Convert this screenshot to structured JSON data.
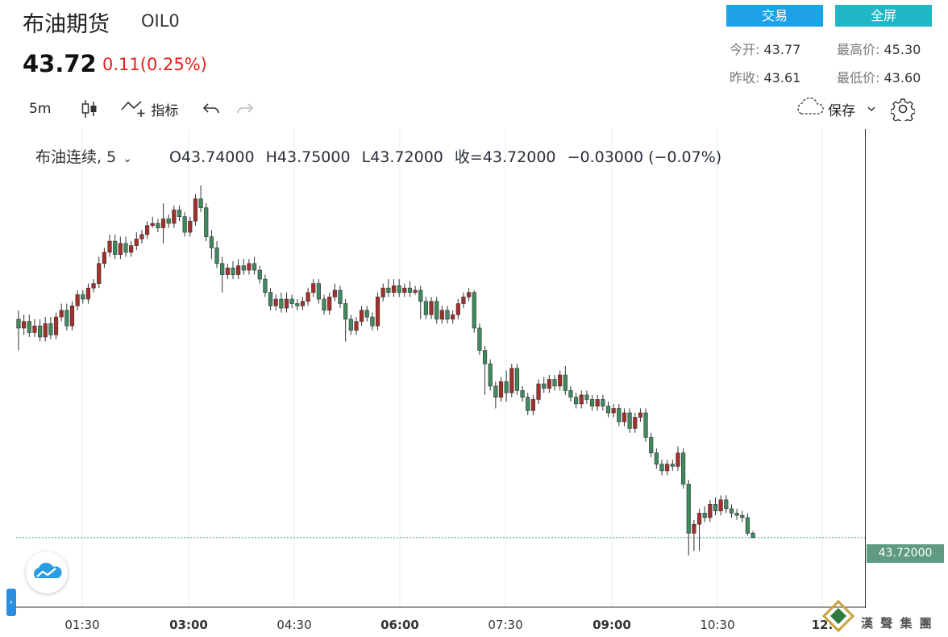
{
  "header": {
    "title": "布油期货",
    "code": "OIL0",
    "last_price": "43.72",
    "change": "0.11(0.25%)",
    "trade_button": "交易",
    "fullscreen_button": "全屏"
  },
  "stats": {
    "open_label": "今开:",
    "open": "43.77",
    "high_label": "最高价:",
    "high": "45.30",
    "prev_close_label": "昨收:",
    "prev_close": "43.61",
    "low_label": "最低价:",
    "low": "43.60"
  },
  "toolbar": {
    "interval": "5m",
    "indicators_label": "指标",
    "save_label": "保存"
  },
  "legend": {
    "symbol": "布油连续, 5",
    "open": "O43.74000",
    "high": "H43.75000",
    "low": "L43.72000",
    "close": "收=43.72000",
    "change": "−0.03000 (−0.07%)"
  },
  "price_axis_label": "43.72000",
  "time_axis": [
    "01:30",
    "03:00",
    "04:30",
    "06:00",
    "07:30",
    "09:00",
    "10:30",
    "12:"
  ],
  "watermark_text": "漢 聲 集 團",
  "colors": {
    "up": "#a5302b",
    "down": "#3f8a5e",
    "accent": "#1da1e8",
    "price_label": "#5f9b82"
  },
  "chart_data": {
    "type": "candlestick",
    "interval": "5m",
    "x_ticks": [
      "01:30",
      "03:00",
      "04:30",
      "06:00",
      "07:30",
      "09:00",
      "10:30",
      "12:"
    ],
    "current_price": 43.72,
    "candles": [
      [
        44.7,
        44.66,
        44.74,
        44.56
      ],
      [
        44.66,
        44.69,
        44.72,
        44.63
      ],
      [
        44.69,
        44.64,
        44.72,
        44.62
      ],
      [
        44.64,
        44.67,
        44.7,
        44.62
      ],
      [
        44.67,
        44.62,
        44.7,
        44.6
      ],
      [
        44.62,
        44.68,
        44.71,
        44.6
      ],
      [
        44.68,
        44.63,
        44.71,
        44.61
      ],
      [
        44.63,
        44.71,
        44.73,
        44.61
      ],
      [
        44.71,
        44.74,
        44.77,
        44.69
      ],
      [
        44.74,
        44.67,
        44.77,
        44.65
      ],
      [
        44.67,
        44.76,
        44.78,
        44.65
      ],
      [
        44.76,
        44.81,
        44.83,
        44.74
      ],
      [
        44.81,
        44.79,
        44.83,
        44.77
      ],
      [
        44.79,
        44.84,
        44.86,
        44.77
      ],
      [
        44.84,
        44.86,
        44.88,
        44.82
      ],
      [
        44.86,
        44.95,
        44.98,
        44.84
      ],
      [
        44.95,
        45.0,
        45.02,
        44.93
      ],
      [
        45.0,
        45.05,
        45.08,
        44.98
      ],
      [
        45.05,
        44.99,
        45.08,
        44.97
      ],
      [
        44.99,
        45.04,
        45.07,
        44.97
      ],
      [
        45.04,
        45.0,
        45.07,
        44.98
      ],
      [
        45.0,
        45.03,
        45.05,
        44.98
      ],
      [
        45.03,
        45.06,
        45.09,
        45.01
      ],
      [
        45.06,
        45.08,
        45.1,
        45.04
      ],
      [
        45.08,
        45.12,
        45.14,
        45.06
      ],
      [
        45.12,
        45.13,
        45.16,
        45.11
      ],
      [
        45.13,
        45.11,
        45.15,
        45.09
      ],
      [
        45.11,
        45.15,
        45.22,
        45.04
      ],
      [
        45.15,
        45.13,
        45.17,
        45.11
      ],
      [
        45.13,
        45.19,
        45.21,
        45.11
      ],
      [
        45.19,
        45.16,
        45.21,
        45.14
      ],
      [
        45.16,
        45.09,
        45.18,
        45.07
      ],
      [
        45.09,
        45.14,
        45.16,
        45.07
      ],
      [
        45.14,
        45.24,
        45.26,
        45.12
      ],
      [
        45.24,
        45.2,
        45.3,
        45.18
      ],
      [
        45.2,
        45.07,
        45.22,
        45.05
      ],
      [
        45.07,
        45.02,
        45.1,
        44.97
      ],
      [
        45.02,
        44.95,
        45.05,
        44.93
      ],
      [
        44.95,
        44.9,
        44.98,
        44.82
      ],
      [
        44.9,
        44.93,
        44.95,
        44.88
      ],
      [
        44.93,
        44.9,
        44.96,
        44.88
      ],
      [
        44.9,
        44.94,
        44.97,
        44.88
      ],
      [
        44.94,
        44.92,
        44.97,
        44.9
      ],
      [
        44.92,
        44.95,
        44.97,
        44.9
      ],
      [
        44.95,
        44.92,
        44.98,
        44.9
      ],
      [
        44.92,
        44.88,
        44.94,
        44.86
      ],
      [
        44.88,
        44.82,
        44.9,
        44.8
      ],
      [
        44.82,
        44.76,
        44.84,
        44.74
      ],
      [
        44.76,
        44.79,
        44.81,
        44.74
      ],
      [
        44.79,
        44.75,
        44.82,
        44.73
      ],
      [
        44.75,
        44.79,
        44.82,
        44.73
      ],
      [
        44.79,
        44.77,
        44.81,
        44.75
      ],
      [
        44.77,
        44.76,
        44.79,
        44.74
      ],
      [
        44.76,
        44.78,
        44.8,
        44.74
      ],
      [
        44.78,
        44.82,
        44.84,
        44.76
      ],
      [
        44.82,
        44.86,
        44.88,
        44.8
      ],
      [
        44.86,
        44.79,
        44.88,
        44.77
      ],
      [
        44.79,
        44.74,
        44.81,
        44.72
      ],
      [
        44.74,
        44.8,
        44.82,
        44.72
      ],
      [
        44.8,
        44.83,
        44.86,
        44.78
      ],
      [
        44.83,
        44.77,
        44.85,
        44.75
      ],
      [
        44.77,
        44.7,
        44.79,
        44.6
      ],
      [
        44.7,
        44.65,
        44.72,
        44.63
      ],
      [
        44.65,
        44.69,
        44.71,
        44.63
      ],
      [
        44.69,
        44.74,
        44.76,
        44.67
      ],
      [
        44.74,
        44.71,
        44.76,
        44.69
      ],
      [
        44.71,
        44.67,
        44.73,
        44.65
      ],
      [
        44.67,
        44.8,
        44.82,
        44.65
      ],
      [
        44.8,
        44.84,
        44.86,
        44.78
      ],
      [
        44.84,
        44.82,
        44.88,
        44.8
      ],
      [
        44.82,
        44.85,
        44.88,
        44.8
      ],
      [
        44.85,
        44.82,
        44.88,
        44.8
      ],
      [
        44.82,
        44.84,
        44.86,
        44.8
      ],
      [
        44.84,
        44.82,
        44.87,
        44.8
      ],
      [
        44.82,
        44.83,
        44.85,
        44.81
      ],
      [
        44.83,
        44.78,
        44.85,
        44.7
      ],
      [
        44.78,
        44.72,
        44.8,
        44.7
      ],
      [
        44.72,
        44.78,
        44.8,
        44.7
      ],
      [
        44.78,
        44.7,
        44.8,
        44.68
      ],
      [
        44.7,
        44.74,
        44.76,
        44.68
      ],
      [
        44.74,
        44.7,
        44.76,
        44.68
      ],
      [
        44.7,
        44.72,
        44.74,
        44.68
      ],
      [
        44.72,
        44.77,
        44.79,
        44.7
      ],
      [
        44.77,
        44.8,
        44.82,
        44.75
      ],
      [
        44.8,
        44.82,
        44.84,
        44.78
      ],
      [
        44.82,
        44.66,
        44.83,
        44.64
      ],
      [
        44.66,
        44.56,
        44.68,
        44.54
      ],
      [
        44.56,
        44.5,
        44.58,
        44.36
      ],
      [
        44.5,
        44.4,
        44.52,
        44.38
      ],
      [
        44.4,
        44.35,
        44.42,
        44.3
      ],
      [
        44.35,
        44.42,
        44.44,
        44.33
      ],
      [
        44.42,
        44.37,
        44.47,
        44.33
      ],
      [
        44.37,
        44.48,
        44.5,
        44.35
      ],
      [
        44.48,
        44.38,
        44.5,
        44.36
      ],
      [
        44.38,
        44.35,
        44.4,
        44.33
      ],
      [
        44.35,
        44.29,
        44.37,
        44.27
      ],
      [
        44.29,
        44.34,
        44.36,
        44.27
      ],
      [
        44.34,
        44.41,
        44.43,
        44.32
      ],
      [
        44.41,
        44.39,
        44.44,
        44.37
      ],
      [
        44.39,
        44.43,
        44.45,
        44.37
      ],
      [
        44.43,
        44.4,
        44.45,
        44.38
      ],
      [
        44.4,
        44.45,
        44.47,
        44.38
      ],
      [
        44.45,
        44.38,
        44.49,
        44.36
      ],
      [
        44.38,
        44.35,
        44.4,
        44.33
      ],
      [
        44.35,
        44.32,
        44.37,
        44.3
      ],
      [
        44.32,
        44.36,
        44.38,
        44.3
      ],
      [
        44.36,
        44.34,
        44.38,
        44.32
      ],
      [
        44.34,
        44.31,
        44.36,
        44.29
      ],
      [
        44.31,
        44.34,
        44.36,
        44.29
      ],
      [
        44.34,
        44.31,
        44.36,
        44.29
      ],
      [
        44.31,
        44.28,
        44.33,
        44.26
      ],
      [
        44.28,
        44.3,
        44.32,
        44.26
      ],
      [
        44.3,
        44.24,
        44.32,
        44.22
      ],
      [
        44.24,
        44.28,
        44.3,
        44.22
      ],
      [
        44.28,
        44.21,
        44.3,
        44.19
      ],
      [
        44.21,
        44.26,
        44.28,
        44.19
      ],
      [
        44.26,
        44.28,
        44.3,
        44.24
      ],
      [
        44.28,
        44.17,
        44.3,
        44.15
      ],
      [
        44.17,
        44.1,
        44.19,
        44.08
      ],
      [
        44.1,
        44.05,
        44.12,
        44.03
      ],
      [
        44.05,
        44.02,
        44.07,
        44.0
      ],
      [
        44.02,
        44.05,
        44.07,
        44.0
      ],
      [
        44.05,
        44.04,
        44.07,
        44.02
      ],
      [
        44.04,
        44.1,
        44.13,
        44.02
      ],
      [
        44.1,
        43.96,
        44.12,
        43.94
      ],
      [
        43.96,
        43.74,
        43.98,
        43.64
      ],
      [
        43.74,
        43.78,
        43.8,
        43.66
      ],
      [
        43.78,
        43.83,
        43.85,
        43.66
      ],
      [
        43.83,
        43.81,
        43.86,
        43.79
      ],
      [
        43.81,
        43.87,
        43.89,
        43.79
      ],
      [
        43.87,
        43.84,
        43.9,
        43.82
      ],
      [
        43.84,
        43.89,
        43.91,
        43.82
      ],
      [
        43.89,
        43.85,
        43.91,
        43.83
      ],
      [
        43.85,
        43.83,
        43.87,
        43.81
      ],
      [
        43.83,
        43.82,
        43.85,
        43.8
      ],
      [
        43.82,
        43.81,
        43.84,
        43.79
      ],
      [
        43.81,
        43.74,
        43.83,
        43.73
      ],
      [
        43.74,
        43.72,
        43.75,
        43.72
      ]
    ]
  }
}
